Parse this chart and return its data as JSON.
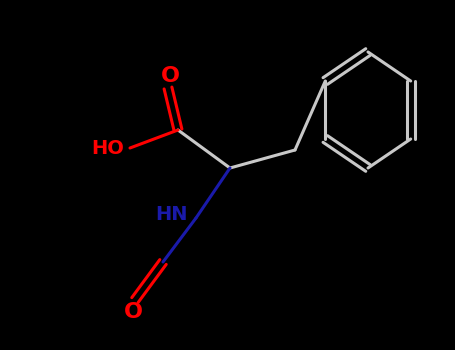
{
  "background_color": "#000000",
  "bond_color": "#c8c8c8",
  "atom_colors": {
    "O": "#ff0000",
    "N": "#1a1aaa",
    "C": "#c8c8c8",
    "H": "#c8c8c8"
  },
  "figsize": [
    4.55,
    3.5
  ],
  "dpi": 100,
  "label_fontsize": 13
}
